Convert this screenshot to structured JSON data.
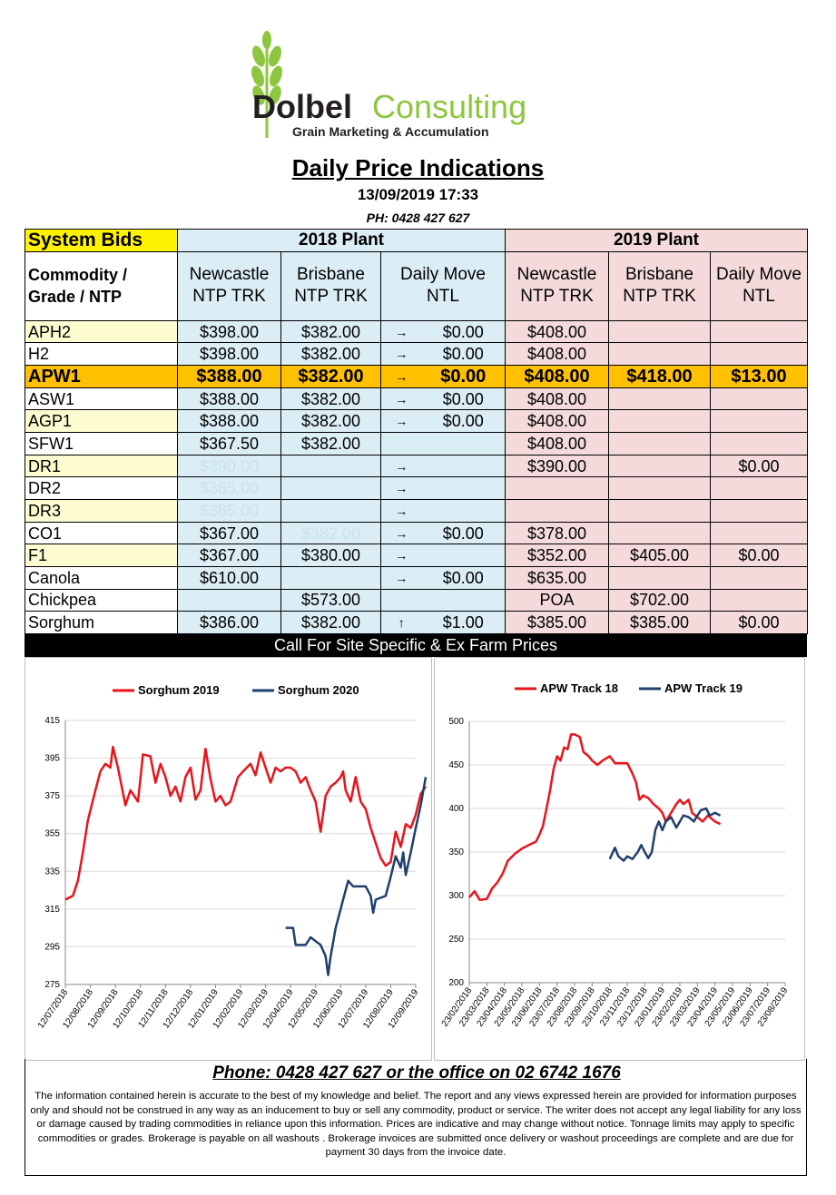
{
  "header": {
    "logo_part1": "Dolbel",
    "logo_part2": "Consulting",
    "logo_tagline": "Grain Marketing & Accumulation",
    "title": "Daily Price Indications",
    "datetime": "13/09/2019 17:33",
    "phone": "PH: 0428 427 627"
  },
  "table": {
    "system_bids": "System Bids",
    "group_2018": "2018 Plant",
    "group_2019": "2019 Plant",
    "col_commodity": "Commodity / Grade / NTP",
    "col_newcastle_18": "Newcastle NTP TRK",
    "col_brisbane_18": "Brisbane NTP TRK",
    "col_move_18": "Daily Move NTL",
    "col_newcastle_19": "Newcastle NTP TRK",
    "col_brisbane_19": "Brisbane NTP TRK",
    "col_move_19": "Daily Move NTL",
    "rows": [
      {
        "grade": "APH2",
        "n18": "$398.00",
        "b18": "$382.00",
        "arrow": "→",
        "m18": "$0.00",
        "n19": "$408.00",
        "b19": "",
        "m19": ""
      },
      {
        "grade": "H2",
        "n18": "$398.00",
        "b18": "$382.00",
        "arrow": "→",
        "m18": "$0.00",
        "n19": "$408.00",
        "b19": "",
        "m19": ""
      },
      {
        "grade": "APW1",
        "n18": "$388.00",
        "b18": "$382.00",
        "arrow": "→",
        "m18": "$0.00",
        "n19": "$408.00",
        "b19": "$418.00",
        "m19": "$13.00"
      },
      {
        "grade": "ASW1",
        "n18": "$388.00",
        "b18": "$382.00",
        "arrow": "→",
        "m18": "$0.00",
        "n19": "$408.00",
        "b19": "",
        "m19": ""
      },
      {
        "grade": "AGP1",
        "n18": "$388.00",
        "b18": "$382.00",
        "arrow": "→",
        "m18": "$0.00",
        "n19": "$408.00",
        "b19": "",
        "m19": ""
      },
      {
        "grade": "SFW1",
        "n18": "$367.50",
        "b18": "$382.00",
        "arrow": "",
        "m18": "",
        "n19": "$408.00",
        "b19": "",
        "m19": ""
      },
      {
        "grade": "DR1",
        "n18": "$390.00",
        "b18": "",
        "arrow": "→",
        "m18": "",
        "n19": "$390.00",
        "b19": "",
        "m19": "$0.00"
      },
      {
        "grade": "DR2",
        "n18": "$365.00",
        "b18": "",
        "arrow": "→",
        "m18": "",
        "n19": "",
        "b19": "",
        "m19": ""
      },
      {
        "grade": "DR3",
        "n18": "$365.00",
        "b18": "",
        "arrow": "→",
        "m18": "",
        "n19": "",
        "b19": "",
        "m19": ""
      },
      {
        "grade": "CO1",
        "n18": "$367.00",
        "b18": "$382.00",
        "arrow": "→",
        "m18": "$0.00",
        "n19": "$378.00",
        "b19": "",
        "m19": ""
      },
      {
        "grade": "F1",
        "n18": "$367.00",
        "b18": "$380.00",
        "arrow": "→",
        "m18": "",
        "n19": "$352.00",
        "b19": "$405.00",
        "m19": "$0.00"
      },
      {
        "grade": "Canola",
        "n18": "$610.00",
        "b18": "",
        "arrow": "→",
        "m18": "$0.00",
        "n19": "$635.00",
        "b19": "",
        "m19": ""
      },
      {
        "grade": "Chickpea",
        "n18": "",
        "b18": "$573.00",
        "arrow": "",
        "m18": "",
        "n19": "POA",
        "b19": "$702.00",
        "m19": ""
      },
      {
        "grade": "Sorghum",
        "n18": "$386.00",
        "b18": "$382.00",
        "arrow": "↑",
        "m18": "$1.00",
        "n19": "$385.00",
        "b19": "$385.00",
        "m19": "$0.00"
      }
    ]
  },
  "callbar": "Call For Site Specific & Ex Farm Prices",
  "chart_data": [
    {
      "type": "line",
      "ylim": [
        275,
        415
      ],
      "yticks": [
        "415",
        "395",
        "375",
        "355",
        "335",
        "315",
        "295",
        "275"
      ],
      "xticks": [
        "12/07/2018",
        "12/08/2018",
        "12/09/2018",
        "12/10/2018",
        "12/11/2018",
        "12/12/2018",
        "12/01/2019",
        "12/02/2019",
        "12/03/2019",
        "12/04/2019",
        "12/05/2019",
        "12/06/2019",
        "12/07/2019",
        "12/08/2019",
        "12/09/2019"
      ],
      "legend_position": "top",
      "series": [
        {
          "name": "Sorghum 2019",
          "color": "#e8141b",
          "values": [
            [
              0,
              320
            ],
            [
              0.3,
              322
            ],
            [
              0.5,
              330
            ],
            [
              0.7,
              345
            ],
            [
              0.9,
              362
            ],
            [
              1.2,
              378
            ],
            [
              1.4,
              388
            ],
            [
              1.6,
              392
            ],
            [
              1.8,
              390
            ],
            [
              1.9,
              401
            ],
            [
              2.1,
              390
            ],
            [
              2.4,
              370
            ],
            [
              2.6,
              378
            ],
            [
              2.9,
              372
            ],
            [
              3.1,
              397
            ],
            [
              3.4,
              396
            ],
            [
              3.6,
              382
            ],
            [
              3.8,
              392
            ],
            [
              4.0,
              385
            ],
            [
              4.2,
              375
            ],
            [
              4.4,
              380
            ],
            [
              4.6,
              372
            ],
            [
              4.8,
              385
            ],
            [
              5.0,
              390
            ],
            [
              5.2,
              373
            ],
            [
              5.4,
              378
            ],
            [
              5.6,
              400
            ],
            [
              5.8,
              384
            ],
            [
              6.0,
              372
            ],
            [
              6.2,
              375
            ],
            [
              6.4,
              370
            ],
            [
              6.6,
              372
            ],
            [
              6.9,
              385
            ],
            [
              7.1,
              388
            ],
            [
              7.4,
              392
            ],
            [
              7.6,
              386
            ],
            [
              7.8,
              398
            ],
            [
              8.0,
              390
            ],
            [
              8.2,
              382
            ],
            [
              8.4,
              390
            ],
            [
              8.6,
              388
            ],
            [
              8.8,
              390
            ],
            [
              9.0,
              390
            ],
            [
              9.2,
              388
            ],
            [
              9.4,
              382
            ],
            [
              9.6,
              385
            ],
            [
              9.8,
              378
            ],
            [
              10.0,
              372
            ],
            [
              10.2,
              356
            ],
            [
              10.4,
              375
            ],
            [
              10.6,
              380
            ],
            [
              10.8,
              382
            ],
            [
              11.0,
              385
            ],
            [
              11.1,
              388
            ],
            [
              11.2,
              378
            ],
            [
              11.4,
              372
            ],
            [
              11.6,
              385
            ],
            [
              11.8,
              372
            ],
            [
              12.0,
              368
            ],
            [
              12.2,
              358
            ],
            [
              12.4,
              350
            ],
            [
              12.6,
              342
            ],
            [
              12.8,
              338
            ],
            [
              13.0,
              340
            ],
            [
              13.2,
              356
            ],
            [
              13.4,
              348
            ],
            [
              13.6,
              360
            ],
            [
              13.8,
              358
            ],
            [
              14.0,
              365
            ],
            [
              14.2,
              376
            ],
            [
              14.4,
              380
            ]
          ]
        },
        {
          "name": "Sorghum 2020",
          "color": "#1f3f6d",
          "values": [
            [
              8.8,
              305
            ],
            [
              9.1,
              305
            ],
            [
              9.2,
              296
            ],
            [
              9.6,
              296
            ],
            [
              9.8,
              300
            ],
            [
              10.0,
              298
            ],
            [
              10.2,
              296
            ],
            [
              10.4,
              290
            ],
            [
              10.5,
              280
            ],
            [
              10.6,
              290
            ],
            [
              10.8,
              305
            ],
            [
              11.0,
              315
            ],
            [
              11.1,
              320
            ],
            [
              11.3,
              330
            ],
            [
              11.5,
              327
            ],
            [
              12.0,
              327
            ],
            [
              12.2,
              322
            ],
            [
              12.3,
              313
            ],
            [
              12.4,
              320
            ],
            [
              12.8,
              322
            ],
            [
              13.0,
              332
            ],
            [
              13.2,
              343
            ],
            [
              13.4,
              337
            ],
            [
              13.5,
              345
            ],
            [
              13.6,
              333
            ],
            [
              13.8,
              345
            ],
            [
              14.0,
              358
            ],
            [
              14.2,
              370
            ],
            [
              14.4,
              385
            ]
          ]
        }
      ]
    },
    {
      "type": "line",
      "ylim": [
        200,
        500
      ],
      "yticks": [
        "500",
        "450",
        "400",
        "350",
        "300",
        "250",
        "200"
      ],
      "xticks": [
        "23/02/2018",
        "23/03/2018",
        "23/04/2018",
        "23/05/2018",
        "23/06/2018",
        "23/07/2018",
        "23/08/2018",
        "23/09/2018",
        "23/10/2018",
        "23/11/2018",
        "23/12/2018",
        "23/01/2019",
        "23/02/2019",
        "23/03/2019",
        "23/04/2019",
        "23/05/2019",
        "23/06/2019",
        "23/07/2019",
        "23/08/2019"
      ],
      "legend_position": "top",
      "series": [
        {
          "name": "APW Track 18",
          "color": "#e8141b",
          "values": [
            [
              0,
              298
            ],
            [
              0.3,
              305
            ],
            [
              0.6,
              295
            ],
            [
              1.0,
              296
            ],
            [
              1.3,
              308
            ],
            [
              1.6,
              315
            ],
            [
              1.9,
              325
            ],
            [
              2.2,
              340
            ],
            [
              2.6,
              348
            ],
            [
              3.0,
              354
            ],
            [
              3.4,
              358
            ],
            [
              3.8,
              362
            ],
            [
              4.0,
              370
            ],
            [
              4.2,
              380
            ],
            [
              4.4,
              400
            ],
            [
              4.6,
              420
            ],
            [
              4.8,
              445
            ],
            [
              5.0,
              460
            ],
            [
              5.2,
              455
            ],
            [
              5.4,
              470
            ],
            [
              5.6,
              468
            ],
            [
              5.8,
              485
            ],
            [
              6.0,
              485
            ],
            [
              6.3,
              482
            ],
            [
              6.5,
              465
            ],
            [
              6.8,
              460
            ],
            [
              7.0,
              455
            ],
            [
              7.3,
              450
            ],
            [
              7.6,
              455
            ],
            [
              8.0,
              460
            ],
            [
              8.3,
              452
            ],
            [
              8.6,
              452
            ],
            [
              9.0,
              452
            ],
            [
              9.3,
              440
            ],
            [
              9.5,
              430
            ],
            [
              9.7,
              410
            ],
            [
              9.9,
              415
            ],
            [
              10.2,
              412
            ],
            [
              10.5,
              405
            ],
            [
              10.8,
              400
            ],
            [
              11.0,
              395
            ],
            [
              11.2,
              385
            ],
            [
              11.5,
              395
            ],
            [
              11.8,
              405
            ],
            [
              12.0,
              410
            ],
            [
              12.2,
              405
            ],
            [
              12.5,
              410
            ],
            [
              12.7,
              395
            ],
            [
              13.0,
              390
            ],
            [
              13.3,
              385
            ],
            [
              13.6,
              392
            ],
            [
              14.0,
              385
            ],
            [
              14.3,
              382
            ]
          ]
        },
        {
          "name": "APW Track 19",
          "color": "#1f3f6d",
          "values": [
            [
              8.0,
              342
            ],
            [
              8.3,
              355
            ],
            [
              8.5,
              345
            ],
            [
              8.8,
              340
            ],
            [
              9.0,
              345
            ],
            [
              9.3,
              342
            ],
            [
              9.6,
              350
            ],
            [
              9.8,
              358
            ],
            [
              10.0,
              350
            ],
            [
              10.2,
              343
            ],
            [
              10.4,
              350
            ],
            [
              10.6,
              375
            ],
            [
              10.8,
              385
            ],
            [
              11.0,
              375
            ],
            [
              11.2,
              385
            ],
            [
              11.5,
              390
            ],
            [
              11.8,
              378
            ],
            [
              12.0,
              385
            ],
            [
              12.2,
              392
            ],
            [
              12.5,
              390
            ],
            [
              12.8,
              385
            ],
            [
              13.0,
              392
            ],
            [
              13.2,
              398
            ],
            [
              13.5,
              400
            ],
            [
              13.7,
              392
            ],
            [
              14.0,
              395
            ],
            [
              14.3,
              392
            ]
          ]
        }
      ]
    }
  ],
  "footer": {
    "phone": "Phone: 0428 427 627 or the office on 02 6742 1676",
    "disclaimer": "The information contained herein is accurate to the best of my knowledge and belief.  The report and any views expressed herein are provided for information purposes only and should not be construed in any way as an inducement to buy or sell any commodity, product or service. The writer does not accept any legal liability for any loss or damage caused by trading commodities in reliance upon this information. Prices are indicative and may change without notice. Tonnage limits may apply to specific commodities or grades.  Brokerage is payable on all washouts . Brokerage invoices are submitted once delivery or washout proceedings are complete and are due for payment 30 days from the invoice date."
  }
}
